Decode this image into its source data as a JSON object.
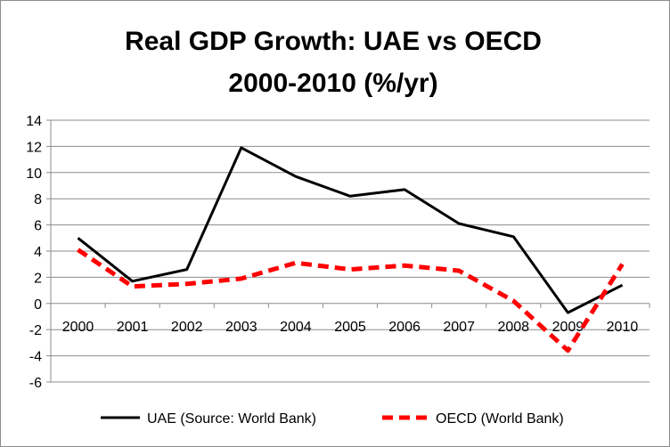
{
  "chart_data": {
    "type": "line",
    "title_lines": [
      "Real GDP Growth: UAE vs OECD",
      "2000-2010 (%/yr)"
    ],
    "xlabel": "",
    "ylabel": "",
    "x": [
      "2000",
      "2001",
      "2002",
      "2003",
      "2004",
      "2005",
      "2006",
      "2007",
      "2008",
      "2009",
      "2010"
    ],
    "ylim": [
      -6,
      14
    ],
    "yticks": [
      14,
      12,
      10,
      8,
      6,
      4,
      2,
      0,
      -2,
      -4,
      -6
    ],
    "grid": true,
    "legend_position": "bottom",
    "series": [
      {
        "name": "UAE (Source: World Bank)",
        "color": "#000000",
        "style": "solid",
        "values": [
          5.0,
          1.7,
          2.6,
          11.9,
          9.7,
          8.2,
          8.7,
          6.1,
          5.1,
          -0.7,
          1.4
        ]
      },
      {
        "name": "OECD (World Bank)",
        "color": "#ff0000",
        "style": "dashed",
        "values": [
          4.1,
          1.3,
          1.5,
          1.9,
          3.1,
          2.6,
          2.9,
          2.5,
          0.2,
          -3.6,
          3.0
        ]
      }
    ]
  }
}
